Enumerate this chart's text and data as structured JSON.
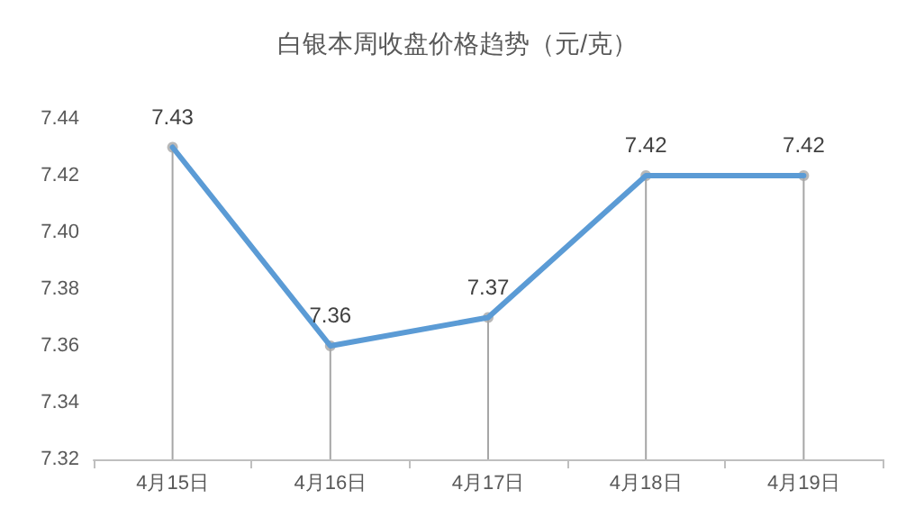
{
  "chart_data": {
    "type": "line",
    "title": "白银本周收盘价格趋势（元/克）",
    "categories": [
      "4月15日",
      "4月16日",
      "4月17日",
      "4月18日",
      "4月19日"
    ],
    "series": [
      {
        "color": "#5b9bd5",
        "values": [
          7.43,
          7.36,
          7.37,
          7.42,
          7.42
        ],
        "value_labels": [
          "7.43",
          "7.36",
          "7.37",
          "7.42",
          "7.42"
        ]
      },
      {
        "type": "lollipop",
        "color": "#a6a6a6",
        "marker": "circle",
        "values": [
          7.43,
          7.36,
          7.37,
          7.42,
          7.42
        ]
      }
    ],
    "ylim": [
      7.32,
      7.44
    ],
    "yticks": [
      7.32,
      7.34,
      7.36,
      7.38,
      {
        "value": 7.4,
        "label": "7.40"
      },
      7.42,
      7.44
    ],
    "grid": false,
    "marker": "none",
    "line_style": "solid"
  }
}
